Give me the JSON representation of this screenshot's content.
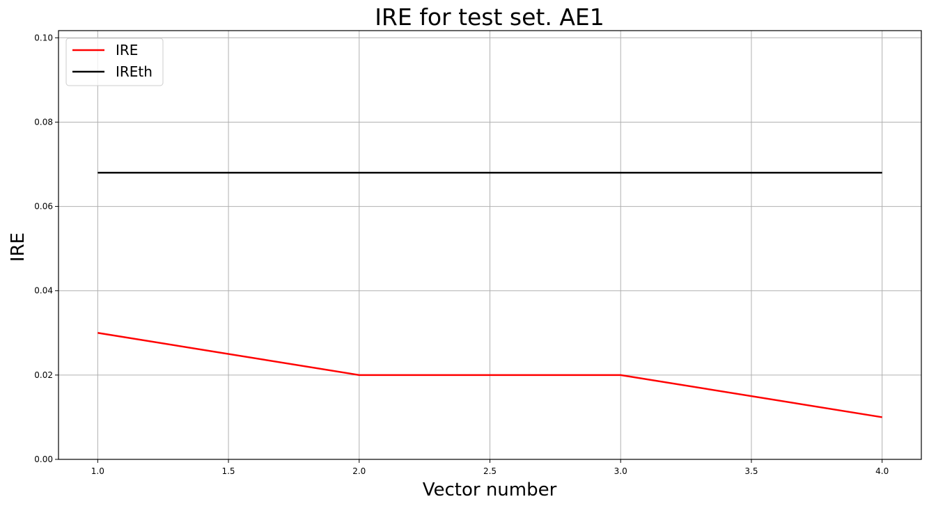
{
  "chart_data": {
    "type": "line",
    "title": "IRE for test set. AE1",
    "xlabel": "Vector number",
    "ylabel": "IRE",
    "xlim": [
      0.85,
      4.15
    ],
    "ylim": [
      0,
      0.1017
    ],
    "xticks": [
      "1.0",
      "1.5",
      "2.0",
      "2.5",
      "3.0",
      "3.5",
      "4.0"
    ],
    "yticks": [
      "0.00",
      "0.02",
      "0.04",
      "0.06",
      "0.08",
      "0.10"
    ],
    "grid": true,
    "legend_position": "top-left",
    "x": [
      1,
      2,
      3,
      4
    ],
    "series": [
      {
        "name": "IRE",
        "values": [
          0.03,
          0.02,
          0.02,
          0.01
        ],
        "color": "#ff0000"
      },
      {
        "name": "IREth",
        "values": [
          0.068,
          0.068,
          0.068,
          0.068
        ],
        "color": "#000000"
      }
    ]
  }
}
